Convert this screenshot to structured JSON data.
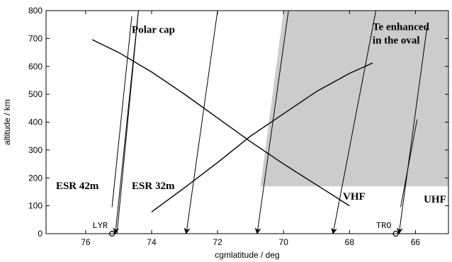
{
  "chart_data": {
    "type": "line",
    "xlabel": "cgmlatitude / deg",
    "ylabel": "altitude / km",
    "xlim": [
      77.2,
      65
    ],
    "ylim": [
      0,
      800
    ],
    "x_reversed": true,
    "x_ticks": [
      76,
      74,
      72,
      70,
      68,
      66
    ],
    "y_ticks": [
      0,
      100,
      200,
      300,
      400,
      500,
      600,
      700,
      800
    ],
    "grid": false,
    "shaded_region": {
      "label": "Te enhanced in the oval",
      "polygon": [
        [
          70.7,
          170
        ],
        [
          70.0,
          800
        ],
        [
          65,
          800
        ],
        [
          65,
          170
        ]
      ],
      "color": "#cccccc"
    },
    "beams": [
      {
        "label": "ESR 42m",
        "points": [
          [
            75.2,
            95
          ],
          [
            74.6,
            780
          ]
        ]
      },
      {
        "label": "ESR 42m",
        "points": [
          [
            75.05,
            0
          ],
          [
            74.4,
            800
          ]
        ]
      },
      {
        "label": "",
        "points": [
          [
            72.95,
            0
          ],
          [
            72.0,
            800
          ]
        ],
        "arrow": true
      },
      {
        "label": "",
        "points": [
          [
            70.8,
            0
          ],
          [
            69.85,
            800
          ]
        ],
        "arrow": true
      },
      {
        "label": "VHF",
        "points": [
          [
            68.5,
            0
          ],
          [
            67.2,
            800
          ]
        ],
        "arrow": true
      },
      {
        "label": "",
        "points": [
          [
            75.1,
            0
          ],
          [
            74.4,
            800
          ]
        ],
        "arrow": true
      },
      {
        "label": "UHF",
        "points": [
          [
            66.5,
            0
          ],
          [
            65.65,
            740
          ]
        ],
        "arrow": true
      },
      {
        "label": "UHF",
        "points": [
          [
            66.45,
            95
          ],
          [
            65.95,
            410
          ]
        ]
      }
    ],
    "curves": [
      {
        "label": "ESR 32m",
        "points": [
          [
            74.0,
            78
          ],
          [
            73.0,
            165
          ],
          [
            72.0,
            255
          ],
          [
            71.0,
            350
          ],
          [
            70.0,
            430
          ],
          [
            69.0,
            510
          ],
          [
            68.0,
            575
          ],
          [
            67.3,
            612
          ]
        ]
      },
      {
        "label": "",
        "points": [
          [
            75.8,
            696
          ],
          [
            75.0,
            650
          ],
          [
            74.0,
            580
          ],
          [
            73.0,
            500
          ],
          [
            72.0,
            415
          ],
          [
            71.0,
            330
          ],
          [
            70.0,
            250
          ],
          [
            69.0,
            175
          ],
          [
            68.0,
            100
          ]
        ]
      }
    ],
    "stations": [
      {
        "label": "LYR",
        "x": 75.2,
        "y": 0
      },
      {
        "label": "TRO",
        "x": 66.6,
        "y": 0
      }
    ],
    "annotations": [
      {
        "text": "Polar cap",
        "x": 74.6,
        "y": 720
      },
      {
        "text": "Te enhanced",
        "x": 67.3,
        "y": 730
      },
      {
        "text": "in the oval",
        "x": 67.3,
        "y": 682
      },
      {
        "text": "ESR 42m",
        "x": 76.9,
        "y": 160
      },
      {
        "text": "ESR 32m",
        "x": 74.6,
        "y": 160
      },
      {
        "text": "VHF",
        "x": 68.2,
        "y": 122
      },
      {
        "text": "UHF",
        "x": 65.75,
        "y": 112
      }
    ]
  }
}
